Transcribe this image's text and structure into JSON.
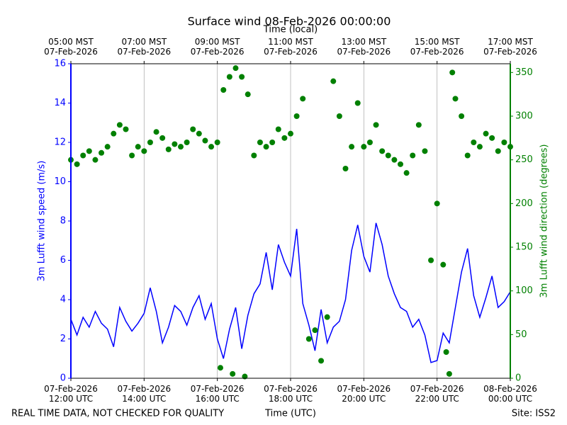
{
  "chart_data": {
    "type": "line",
    "title": "Surface wind 08-Feb-2026 00:00:00",
    "xlabel": "Time (UTC)",
    "x2label": "Time (local)",
    "ylabel": "3m Lufft wind speed (m/s)",
    "y2label": "3m Lufft wind direction (degrees)",
    "footer_left": "REAL TIME DATA, NOT CHECKED FOR QUALITY",
    "footer_right": "Site: ISS2",
    "grid": true,
    "xlim": [
      "2026-02-07 12:00",
      "2026-02-08 00:00"
    ],
    "xticks": [
      {
        "value": "2026-02-07 12:00",
        "label": "07-Feb-2026\n12:00 UTC"
      },
      {
        "value": "2026-02-07 14:00",
        "label": "07-Feb-2026\n14:00 UTC"
      },
      {
        "value": "2026-02-07 16:00",
        "label": "07-Feb-2026\n16:00 UTC"
      },
      {
        "value": "2026-02-07 18:00",
        "label": "07-Feb-2026\n18:00 UTC"
      },
      {
        "value": "2026-02-07 20:00",
        "label": "07-Feb-2026\n20:00 UTC"
      },
      {
        "value": "2026-02-07 22:00",
        "label": "07-Feb-2026\n22:00 UTC"
      },
      {
        "value": "2026-02-08 00:00",
        "label": "08-Feb-2026\n00:00 UTC"
      }
    ],
    "x2ticks": [
      {
        "value": "2026-02-07 12:00",
        "label": "05:00 MST\n07-Feb-2026"
      },
      {
        "value": "2026-02-07 14:00",
        "label": "07:00 MST\n07-Feb-2026"
      },
      {
        "value": "2026-02-07 16:00",
        "label": "09:00 MST\n07-Feb-2026"
      },
      {
        "value": "2026-02-07 18:00",
        "label": "11:00 MST\n07-Feb-2026"
      },
      {
        "value": "2026-02-07 20:00",
        "label": "13:00 MST\n07-Feb-2026"
      },
      {
        "value": "2026-02-07 22:00",
        "label": "15:00 MST\n07-Feb-2026"
      },
      {
        "value": "2026-02-08 00:00",
        "label": "17:00 MST\n07-Feb-2026"
      }
    ],
    "ylim": [
      0,
      16
    ],
    "yticks": [
      0,
      2,
      4,
      6,
      8,
      10,
      12,
      14,
      16
    ],
    "y2lim": [
      0,
      360
    ],
    "y2ticks": [
      0,
      50,
      100,
      150,
      200,
      250,
      300,
      350
    ],
    "series": [
      {
        "name": "3m Lufft wind speed",
        "type": "line",
        "axis": "y",
        "color": "#0000ff",
        "x": [
          "2026-02-07 12:00",
          "2026-02-07 12:10",
          "2026-02-07 12:20",
          "2026-02-07 12:30",
          "2026-02-07 12:40",
          "2026-02-07 12:50",
          "2026-02-07 13:00",
          "2026-02-07 13:10",
          "2026-02-07 13:20",
          "2026-02-07 13:30",
          "2026-02-07 13:40",
          "2026-02-07 13:50",
          "2026-02-07 14:00",
          "2026-02-07 14:10",
          "2026-02-07 14:20",
          "2026-02-07 14:30",
          "2026-02-07 14:40",
          "2026-02-07 14:50",
          "2026-02-07 15:00",
          "2026-02-07 15:10",
          "2026-02-07 15:20",
          "2026-02-07 15:30",
          "2026-02-07 15:40",
          "2026-02-07 15:50",
          "2026-02-07 16:00",
          "2026-02-07 16:10",
          "2026-02-07 16:20",
          "2026-02-07 16:30",
          "2026-02-07 16:40",
          "2026-02-07 16:50",
          "2026-02-07 17:00",
          "2026-02-07 17:10",
          "2026-02-07 17:20",
          "2026-02-07 17:30",
          "2026-02-07 17:40",
          "2026-02-07 17:50",
          "2026-02-07 18:00",
          "2026-02-07 18:10",
          "2026-02-07 18:20",
          "2026-02-07 18:30",
          "2026-02-07 18:40",
          "2026-02-07 18:50",
          "2026-02-07 19:00",
          "2026-02-07 19:10",
          "2026-02-07 19:20",
          "2026-02-07 19:30",
          "2026-02-07 19:40",
          "2026-02-07 19:50",
          "2026-02-07 20:00",
          "2026-02-07 20:10",
          "2026-02-07 20:20",
          "2026-02-07 20:30",
          "2026-02-07 20:40",
          "2026-02-07 20:50",
          "2026-02-07 21:00",
          "2026-02-07 21:10",
          "2026-02-07 21:20",
          "2026-02-07 21:30",
          "2026-02-07 21:40",
          "2026-02-07 21:50",
          "2026-02-07 22:00",
          "2026-02-07 22:10",
          "2026-02-07 22:20",
          "2026-02-07 22:30",
          "2026-02-07 22:40",
          "2026-02-07 22:50",
          "2026-02-07 23:00",
          "2026-02-07 23:10",
          "2026-02-07 23:20",
          "2026-02-07 23:30",
          "2026-02-07 23:40",
          "2026-02-07 23:50",
          "2026-02-08 00:00"
        ],
        "values": [
          3.0,
          2.2,
          3.1,
          2.6,
          3.4,
          2.8,
          2.5,
          1.6,
          3.6,
          2.9,
          2.4,
          2.8,
          3.3,
          4.6,
          3.4,
          1.8,
          2.6,
          3.7,
          3.4,
          2.7,
          3.6,
          4.2,
          3.0,
          3.8,
          2.0,
          1.0,
          2.5,
          3.6,
          1.5,
          3.2,
          4.3,
          4.8,
          6.4,
          4.5,
          6.8,
          5.9,
          5.2,
          7.6,
          3.8,
          2.7,
          1.4,
          3.5,
          1.8,
          2.6,
          2.9,
          4.0,
          6.5,
          7.8,
          6.2,
          5.4,
          7.9,
          6.8,
          5.2,
          4.3,
          3.6,
          3.4,
          2.6,
          3.0,
          2.2,
          0.8,
          0.9,
          2.3,
          1.8,
          3.6,
          5.4,
          6.6,
          4.2,
          3.1,
          4.1,
          5.2,
          3.6,
          3.9,
          4.4
        ]
      },
      {
        "name": "3m Lufft wind direction",
        "type": "scatter",
        "axis": "y2",
        "color": "#008000",
        "x": [
          "2026-02-07 12:00",
          "2026-02-07 12:10",
          "2026-02-07 12:20",
          "2026-02-07 12:30",
          "2026-02-07 12:40",
          "2026-02-07 12:50",
          "2026-02-07 13:00",
          "2026-02-07 13:10",
          "2026-02-07 13:20",
          "2026-02-07 13:30",
          "2026-02-07 13:40",
          "2026-02-07 13:50",
          "2026-02-07 14:00",
          "2026-02-07 14:10",
          "2026-02-07 14:20",
          "2026-02-07 14:30",
          "2026-02-07 14:40",
          "2026-02-07 14:50",
          "2026-02-07 15:00",
          "2026-02-07 15:10",
          "2026-02-07 15:20",
          "2026-02-07 15:30",
          "2026-02-07 15:40",
          "2026-02-07 15:50",
          "2026-02-07 16:00",
          "2026-02-07 16:05",
          "2026-02-07 16:10",
          "2026-02-07 16:20",
          "2026-02-07 16:25",
          "2026-02-07 16:30",
          "2026-02-07 16:40",
          "2026-02-07 16:45",
          "2026-02-07 16:50",
          "2026-02-07 17:00",
          "2026-02-07 17:10",
          "2026-02-07 17:20",
          "2026-02-07 17:30",
          "2026-02-07 17:40",
          "2026-02-07 17:50",
          "2026-02-07 18:00",
          "2026-02-07 18:10",
          "2026-02-07 18:20",
          "2026-02-07 18:30",
          "2026-02-07 18:40",
          "2026-02-07 18:50",
          "2026-02-07 19:00",
          "2026-02-07 19:10",
          "2026-02-07 19:20",
          "2026-02-07 19:30",
          "2026-02-07 19:40",
          "2026-02-07 19:50",
          "2026-02-07 20:00",
          "2026-02-07 20:10",
          "2026-02-07 20:20",
          "2026-02-07 20:30",
          "2026-02-07 20:40",
          "2026-02-07 20:50",
          "2026-02-07 21:00",
          "2026-02-07 21:10",
          "2026-02-07 21:20",
          "2026-02-07 21:30",
          "2026-02-07 21:40",
          "2026-02-07 21:50",
          "2026-02-07 22:00",
          "2026-02-07 22:10",
          "2026-02-07 22:15",
          "2026-02-07 22:20",
          "2026-02-07 22:25",
          "2026-02-07 22:30",
          "2026-02-07 22:40",
          "2026-02-07 22:50",
          "2026-02-07 23:00",
          "2026-02-07 23:10",
          "2026-02-07 23:20",
          "2026-02-07 23:30",
          "2026-02-07 23:40",
          "2026-02-07 23:50",
          "2026-02-08 00:00"
        ],
        "values": [
          250,
          245,
          255,
          260,
          250,
          258,
          265,
          280,
          290,
          285,
          255,
          265,
          260,
          270,
          282,
          275,
          262,
          268,
          265,
          270,
          285,
          280,
          272,
          265,
          270,
          12,
          330,
          345,
          5,
          355,
          345,
          2,
          325,
          255,
          270,
          265,
          270,
          285,
          275,
          280,
          300,
          320,
          45,
          55,
          20,
          70,
          340,
          300,
          240,
          265,
          315,
          265,
          270,
          290,
          260,
          255,
          250,
          245,
          235,
          255,
          290,
          260,
          135,
          200,
          130,
          30,
          5,
          350,
          320,
          300,
          255,
          270,
          265,
          280,
          275,
          260,
          270,
          265
        ]
      }
    ]
  }
}
